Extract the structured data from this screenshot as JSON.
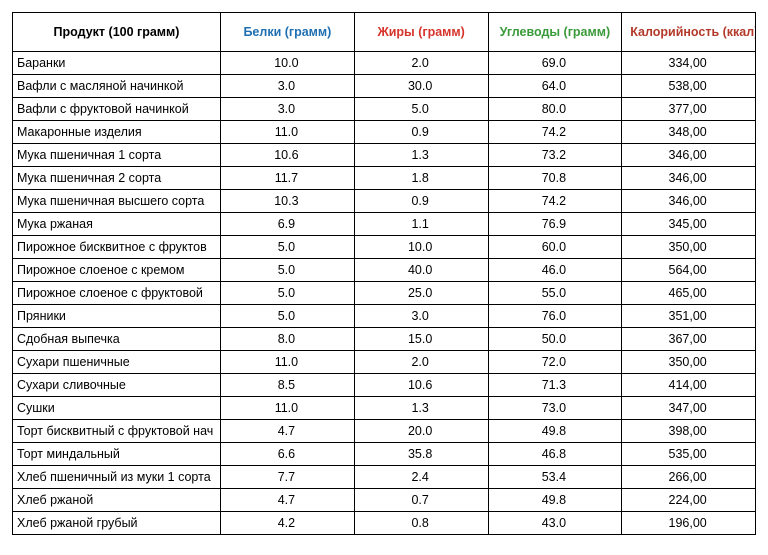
{
  "table": {
    "columns": [
      {
        "key": "product",
        "label": "Продукт (100 грамм)",
        "color": "#000000"
      },
      {
        "key": "protein",
        "label": "Белки (грамм)",
        "color": "#1f6fb2"
      },
      {
        "key": "fat",
        "label": "Жиры (грамм)",
        "color": "#d6342a"
      },
      {
        "key": "carb",
        "label": "Углеводы (грамм)",
        "color": "#3a9a3a"
      },
      {
        "key": "cal",
        "label": "Калорийность (ккал)",
        "color": "#b33a2a"
      }
    ],
    "border_color": "#000000",
    "background_color": "#ffffff",
    "header_fontsize": 12.5,
    "header_fontweight": "bold",
    "body_fontsize": 12.5,
    "rows": [
      {
        "product": "Баранки",
        "protein": "10.0",
        "fat": "2.0",
        "carb": "69.0",
        "cal": "334,00"
      },
      {
        "product": "Вафли с масляной начинкой",
        "protein": "3.0",
        "fat": "30.0",
        "carb": "64.0",
        "cal": "538,00"
      },
      {
        "product": "Вафли с фруктовой начинкой",
        "protein": "3.0",
        "fat": "5.0",
        "carb": "80.0",
        "cal": "377,00"
      },
      {
        "product": "Макаронные изделия",
        "protein": "11.0",
        "fat": "0.9",
        "carb": "74.2",
        "cal": "348,00"
      },
      {
        "product": "Мука пшеничная 1 сорта",
        "protein": "10.6",
        "fat": "1.3",
        "carb": "73.2",
        "cal": "346,00"
      },
      {
        "product": "Мука пшеничная 2 сорта",
        "protein": "11.7",
        "fat": "1.8",
        "carb": "70.8",
        "cal": "346,00"
      },
      {
        "product": "Мука пшеничная высшего сорта",
        "protein": "10.3",
        "fat": "0.9",
        "carb": "74.2",
        "cal": "346,00"
      },
      {
        "product": "Мука ржаная",
        "protein": "6.9",
        "fat": "1.1",
        "carb": "76.9",
        "cal": "345,00"
      },
      {
        "product": "Пирожное бисквитное с фруктов",
        "protein": "5.0",
        "fat": "10.0",
        "carb": "60.0",
        "cal": "350,00"
      },
      {
        "product": "Пирожное слоеное с кремом",
        "protein": "5.0",
        "fat": "40.0",
        "carb": "46.0",
        "cal": "564,00"
      },
      {
        "product": "Пирожное слоеное с фруктовой",
        "protein": "5.0",
        "fat": "25.0",
        "carb": "55.0",
        "cal": "465,00"
      },
      {
        "product": "Пряники",
        "protein": "5.0",
        "fat": "3.0",
        "carb": "76.0",
        "cal": "351,00"
      },
      {
        "product": "Сдобная выпечка",
        "protein": "8.0",
        "fat": "15.0",
        "carb": "50.0",
        "cal": "367,00"
      },
      {
        "product": "Сухари пшеничные",
        "protein": "11.0",
        "fat": "2.0",
        "carb": "72.0",
        "cal": "350,00"
      },
      {
        "product": "Сухари сливочные",
        "protein": "8.5",
        "fat": "10.6",
        "carb": "71.3",
        "cal": "414,00"
      },
      {
        "product": "Сушки",
        "protein": "11.0",
        "fat": "1.3",
        "carb": "73.0",
        "cal": "347,00"
      },
      {
        "product": "Торт бисквитный с фруктовой нач",
        "protein": "4.7",
        "fat": "20.0",
        "carb": "49.8",
        "cal": "398,00"
      },
      {
        "product": "Торт миндальный",
        "protein": "6.6",
        "fat": "35.8",
        "carb": "46.8",
        "cal": "535,00"
      },
      {
        "product": "Хлеб пшеничный из муки 1 сорта",
        "protein": "7.7",
        "fat": "2.4",
        "carb": "53.4",
        "cal": "266,00"
      },
      {
        "product": "Хлеб ржаной",
        "protein": "4.7",
        "fat": "0.7",
        "carb": "49.8",
        "cal": "224,00"
      },
      {
        "product": "Хлеб ржаной грубый",
        "protein": "4.2",
        "fat": "0.8",
        "carb": "43.0",
        "cal": "196,00"
      }
    ]
  }
}
